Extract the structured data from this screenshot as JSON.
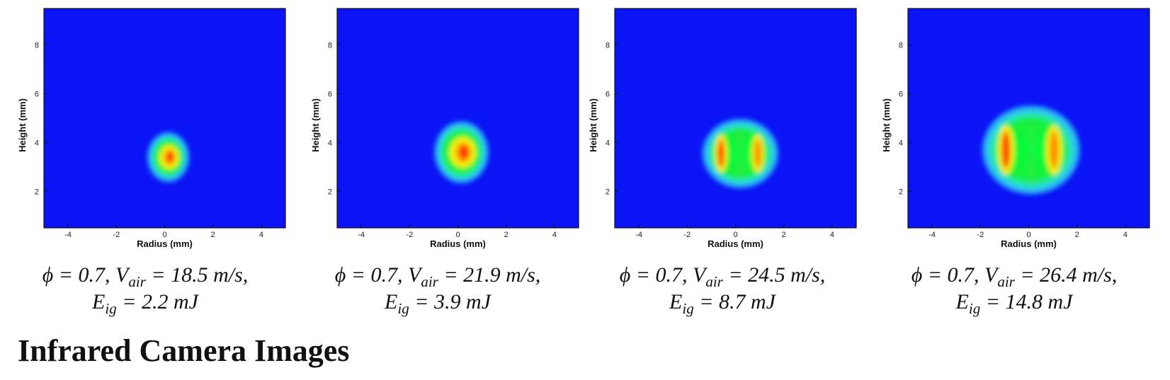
{
  "chart_data": [
    {
      "type": "heatmap",
      "xlabel": "Radius (mm)",
      "ylabel": "Height (mm)",
      "xlim": [
        -5,
        5
      ],
      "ylim": [
        0.5,
        9.5
      ],
      "xticks": [
        -4,
        -2,
        0,
        2,
        4
      ],
      "yticks": [
        2,
        4,
        6,
        8
      ],
      "background_color": "#0a14f5",
      "hot_zone": {
        "center_x": 0.15,
        "center_y": 3.4,
        "half_width": 0.75,
        "half_height": 0.9,
        "shape": "single-core"
      },
      "caption": {
        "phi": "0.7",
        "vair": "18.5",
        "eig": "2.2"
      }
    },
    {
      "type": "heatmap",
      "xlabel": "Radius (mm)",
      "ylabel": "Height (mm)",
      "xlim": [
        -5,
        5
      ],
      "ylim": [
        0.5,
        9.5
      ],
      "xticks": [
        -4,
        -2,
        0,
        2,
        4
      ],
      "yticks": [
        2,
        4,
        6,
        8
      ],
      "background_color": "#0a14f5",
      "hot_zone": {
        "center_x": 0.15,
        "center_y": 3.6,
        "half_width": 1.0,
        "half_height": 1.15,
        "shape": "single-core"
      },
      "caption": {
        "phi": "0.7",
        "vair": "21.9",
        "eig": "3.9"
      }
    },
    {
      "type": "heatmap",
      "xlabel": "Radius (mm)",
      "ylabel": "Height (mm)",
      "xlim": [
        -5,
        5
      ],
      "ylim": [
        0.5,
        9.5
      ],
      "xticks": [
        -4,
        -2,
        0,
        2,
        4
      ],
      "yticks": [
        2,
        4,
        6,
        8
      ],
      "background_color": "#0a14f5",
      "hot_zone": {
        "center_x": 0.2,
        "center_y": 3.55,
        "half_width": 1.45,
        "half_height": 1.3,
        "shape": "twin-lobe"
      },
      "caption": {
        "phi": "0.7",
        "vair": "24.5",
        "eig": "8.7"
      }
    },
    {
      "type": "heatmap",
      "xlabel": "Radius (mm)",
      "ylabel": "Height (mm)",
      "xlim": [
        -5,
        5
      ],
      "ylim": [
        0.5,
        9.5
      ],
      "xticks": [
        -4,
        -2,
        0,
        2,
        4
      ],
      "yticks": [
        2,
        4,
        6,
        8
      ],
      "background_color": "#0a14f5",
      "hot_zone": {
        "center_x": 0.1,
        "center_y": 3.7,
        "half_width": 1.9,
        "half_height": 1.7,
        "shape": "twin-lobe"
      },
      "caption": {
        "phi": "0.7",
        "vair": "26.4",
        "eig": "14.8"
      }
    }
  ],
  "captions": [
    {
      "line1": "ϕ = 0.7, V",
      "sub1": "air",
      "rest1": " = 18.5 m/s,",
      "line2": "E",
      "sub2": "ig",
      "rest2": " = 2.2 mJ"
    },
    {
      "line1": "ϕ = 0.7, V",
      "sub1": "air",
      "rest1": " = 21.9 m/s,",
      "line2": "E",
      "sub2": "ig",
      "rest2": " = 3.9 mJ"
    },
    {
      "line1": "ϕ = 0.7, V",
      "sub1": "air",
      "rest1": " = 24.5 m/s,",
      "line2": "E",
      "sub2": "ig",
      "rest2": " = 8.7 mJ"
    },
    {
      "line1": "ϕ = 0.7, V",
      "sub1": "air",
      "rest1": " = 26.4 m/s,",
      "line2": "E",
      "sub2": "ig",
      "rest2": " = 14.8 mJ"
    }
  ],
  "heading": "Infrared Camera Images"
}
